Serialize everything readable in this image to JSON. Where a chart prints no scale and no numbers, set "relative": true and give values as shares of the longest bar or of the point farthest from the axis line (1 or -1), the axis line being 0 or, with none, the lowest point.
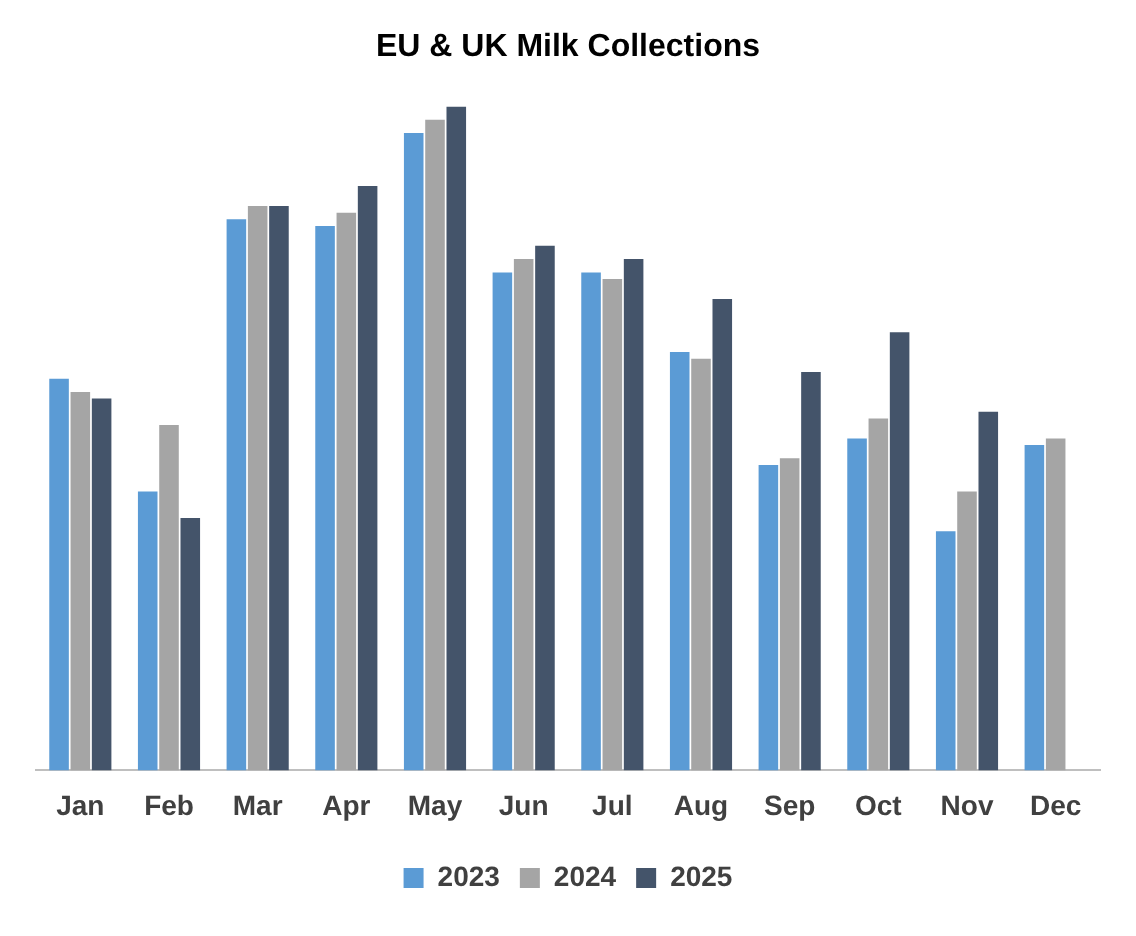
{
  "chart_data": {
    "type": "bar",
    "title": "EU & UK Milk Collections",
    "relative": true,
    "categories": [
      "Jan",
      "Feb",
      "Mar",
      "Apr",
      "May",
      "Jun",
      "Jul",
      "Aug",
      "Sep",
      "Oct",
      "Nov",
      "Dec"
    ],
    "series": [
      {
        "name": "2023",
        "color": "#5b9bd5",
        "values": [
          0.59,
          0.42,
          0.83,
          0.82,
          0.96,
          0.75,
          0.75,
          0.63,
          0.46,
          0.5,
          0.36,
          0.49
        ]
      },
      {
        "name": "2024",
        "color": "#a5a5a5",
        "values": [
          0.57,
          0.52,
          0.85,
          0.84,
          0.98,
          0.77,
          0.74,
          0.62,
          0.47,
          0.53,
          0.42,
          0.5
        ]
      },
      {
        "name": "2025",
        "color": "#44546a",
        "values": [
          0.56,
          0.38,
          0.85,
          0.88,
          1,
          0.79,
          0.77,
          0.71,
          0.6,
          0.66,
          0.54,
          null
        ]
      }
    ],
    "grid": false,
    "legend": "bottom"
  }
}
